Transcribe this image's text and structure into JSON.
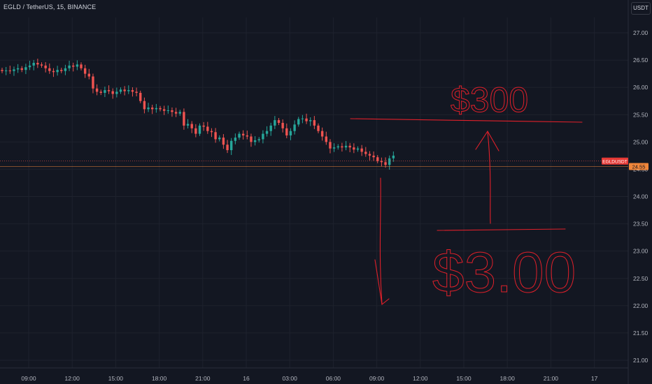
{
  "header": {
    "symbol_line": "EGLD / TetherUS, 15, BINANCE",
    "currency_button": "USDT"
  },
  "colors": {
    "background": "#131722",
    "up": "#26a69a",
    "down": "#ef5350",
    "grid": "#1e222d",
    "price_line": "#ef5350",
    "annotation": "#e0202a"
  },
  "chart_data": {
    "type": "candlestick",
    "title": "EGLD / TetherUS, 15, BINANCE",
    "xlabel": "",
    "ylabel": "",
    "x_ticks": [
      "09:00",
      "12:00",
      "15:00",
      "18:00",
      "21:00",
      "16",
      "03:00",
      "06:00",
      "09:00",
      "12:00",
      "15:00",
      "18:00",
      "21:00",
      "17"
    ],
    "y_ticks": [
      21.0,
      21.5,
      22.0,
      22.5,
      23.0,
      23.5,
      24.0,
      24.5,
      25.0,
      25.5,
      26.0,
      26.5,
      27.0
    ],
    "ylim": [
      20.9,
      27.55
    ],
    "grid": true,
    "close_series": [
      26.3,
      26.31,
      26.3,
      26.33,
      26.35,
      26.32,
      26.37,
      26.4,
      26.45,
      26.42,
      26.4,
      26.35,
      26.3,
      26.28,
      26.32,
      26.3,
      26.35,
      26.4,
      26.38,
      26.42,
      26.35,
      26.25,
      26.2,
      25.98,
      25.92,
      25.9,
      25.95,
      25.93,
      25.88,
      25.92,
      25.96,
      25.93,
      25.95,
      25.92,
      25.9,
      25.75,
      25.6,
      25.63,
      25.6,
      25.62,
      25.6,
      25.57,
      25.58,
      25.55,
      25.52,
      25.55,
      25.3,
      25.33,
      25.25,
      25.15,
      25.3,
      25.28,
      25.2,
      25.18,
      25.05,
      25.08,
      24.95,
      24.85,
      25.02,
      25.08,
      25.15,
      25.12,
      25.1,
      25.0,
      25.03,
      25.05,
      25.15,
      25.2,
      25.3,
      25.4,
      25.35,
      25.25,
      25.12,
      25.2,
      25.32,
      25.42,
      25.43,
      25.38,
      25.4,
      25.3,
      25.2,
      25.1,
      25.0,
      24.88,
      24.9,
      24.92,
      24.9,
      24.93,
      24.9,
      24.86,
      24.88,
      24.82,
      24.78,
      24.75,
      24.72,
      24.65,
      24.63,
      24.58,
      24.7,
      24.75
    ],
    "current_price_label": "24.55",
    "symbol_label": "EGLDUSDT",
    "symbol_price": 24.65,
    "current_price": 24.55
  },
  "annotations": {
    "target_up_text": "$300",
    "target_down_text": "$3.00"
  }
}
